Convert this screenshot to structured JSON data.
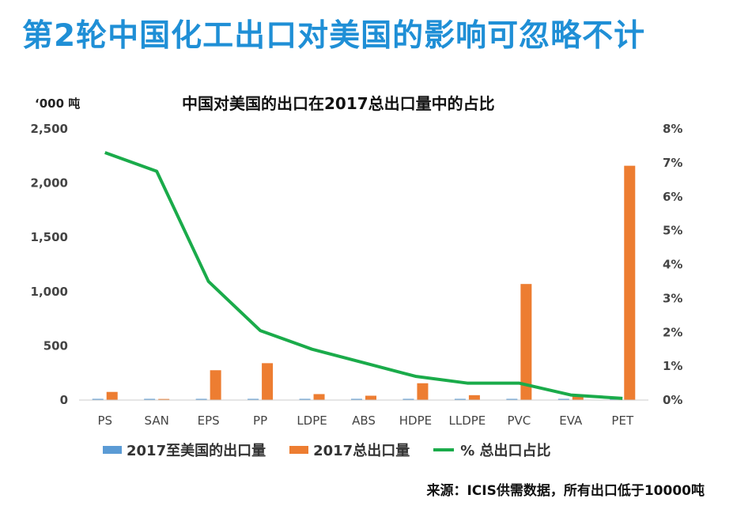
{
  "headline": "第2轮中国化工出口对美国的影响可忽略不计",
  "source_note": "来源：ICIS供需数据，所有出口低于10000吨",
  "colors": {
    "headline": "#1f8fd6",
    "us_exports": "#5b9bd5",
    "total_exports": "#ed7d31",
    "share_line": "#1aab4a"
  },
  "chart_data": {
    "type": "bar",
    "title": "中国对美国的出口在2017总出口量中的占比",
    "unit_label": "‘000 吨",
    "categories": [
      "PS",
      "SAN",
      "EPS",
      "PP",
      "LDPE",
      "ABS",
      "HDPE",
      "LLDPE",
      "PVC",
      "EVA",
      "PET"
    ],
    "series": [
      {
        "name": "2017至美国的出口量",
        "axis": "left",
        "values": [
          5,
          2,
          5,
          5,
          5,
          5,
          5,
          5,
          5,
          5,
          5
        ]
      },
      {
        "name": "2017总出口量",
        "axis": "left",
        "values": [
          75,
          10,
          275,
          340,
          55,
          40,
          155,
          45,
          1070,
          50,
          2160
        ]
      },
      {
        "name": "% 总出口占比",
        "axis": "right",
        "type": "line",
        "values": [
          7.3,
          6.75,
          3.5,
          2.05,
          1.5,
          1.1,
          0.7,
          0.5,
          0.5,
          0.15,
          0.05
        ]
      }
    ],
    "y_left": {
      "min": 0,
      "max": 2500,
      "ticks": [
        "0",
        "500",
        "1,000",
        "1,500",
        "2,000",
        "2,500"
      ]
    },
    "y_right": {
      "min": 0,
      "max": 8,
      "ticks": [
        "0%",
        "1%",
        "2%",
        "3%",
        "4%",
        "5%",
        "6%",
        "7%",
        "8%"
      ]
    },
    "grid": false,
    "legend_position": "bottom"
  }
}
